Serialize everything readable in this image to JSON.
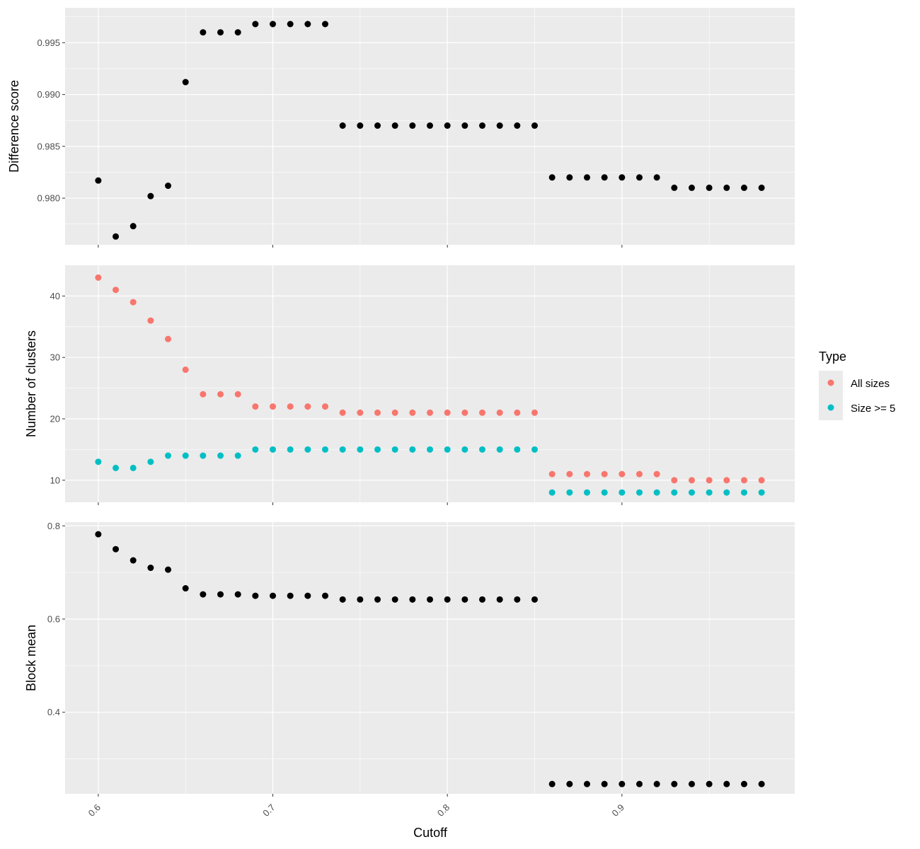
{
  "chart_data": {
    "type": "scatter",
    "xlabel": "Cutoff",
    "xlim": [
      0.581,
      0.999
    ],
    "x_ticks": [
      "0.6",
      "0.7",
      "0.8",
      "0.9"
    ],
    "x_tick_values": [
      0.6,
      0.7,
      0.8,
      0.9
    ],
    "x": [
      0.6,
      0.61,
      0.62,
      0.63,
      0.64,
      0.65,
      0.66,
      0.67,
      0.68,
      0.69,
      0.7,
      0.71,
      0.72,
      0.73,
      0.74,
      0.75,
      0.76,
      0.77,
      0.78,
      0.79,
      0.8,
      0.81,
      0.82,
      0.83,
      0.84,
      0.85,
      0.86,
      0.87,
      0.88,
      0.89,
      0.9,
      0.91,
      0.92,
      0.93,
      0.94,
      0.95,
      0.96,
      0.97,
      0.98
    ],
    "panels": [
      {
        "ylabel": "Difference score",
        "ylim": [
          0.9755,
          0.99837
        ],
        "y_ticks": [
          "0.980",
          "0.985",
          "0.990",
          "0.995"
        ],
        "y_tick_values": [
          0.98,
          0.985,
          0.99,
          0.995
        ],
        "series": [
          {
            "color": "#000000",
            "values": [
              0.9817,
              0.9763,
              0.9773,
              0.9802,
              0.9812,
              0.9912,
              0.996,
              0.996,
              0.996,
              0.9968,
              0.9968,
              0.9968,
              0.9968,
              0.9968,
              0.987,
              0.987,
              0.987,
              0.987,
              0.987,
              0.987,
              0.987,
              0.987,
              0.987,
              0.987,
              0.987,
              0.987,
              0.982,
              0.982,
              0.982,
              0.982,
              0.982,
              0.982,
              0.982,
              0.981,
              0.981,
              0.981,
              0.981,
              0.981,
              0.981
            ]
          }
        ]
      },
      {
        "ylabel": "Number of clusters",
        "ylim": [
          6.4,
          45.0
        ],
        "y_ticks": [
          "10",
          "20",
          "30",
          "40"
        ],
        "y_tick_values": [
          10,
          20,
          30,
          40
        ],
        "series": [
          {
            "name": "All sizes",
            "color": "#F8766D",
            "values": [
              43,
              41,
              39,
              36,
              33,
              28,
              24,
              24,
              24,
              22,
              22,
              22,
              22,
              22,
              21,
              21,
              21,
              21,
              21,
              21,
              21,
              21,
              21,
              21,
              21,
              21,
              11,
              11,
              11,
              11,
              11,
              11,
              11,
              10,
              10,
              10,
              10,
              10,
              10
            ]
          },
          {
            "name": "Size >= 5",
            "color": "#00BFC4",
            "values": [
              13,
              12,
              12,
              13,
              14,
              14,
              14,
              14,
              14,
              15,
              15,
              15,
              15,
              15,
              15,
              15,
              15,
              15,
              15,
              15,
              15,
              15,
              15,
              15,
              15,
              15,
              8,
              8,
              8,
              8,
              8,
              8,
              8,
              8,
              8,
              8,
              8,
              8,
              8
            ]
          }
        ]
      },
      {
        "ylabel": "Block mean",
        "ylim": [
          0.225,
          0.808
        ],
        "y_ticks": [
          "0.4",
          "0.6",
          "0.8"
        ],
        "y_tick_values": [
          0.4,
          0.6,
          0.8
        ],
        "series": [
          {
            "color": "#000000",
            "values": [
              0.782,
              0.75,
              0.726,
              0.71,
              0.706,
              0.666,
              0.653,
              0.653,
              0.653,
              0.65,
              0.65,
              0.65,
              0.65,
              0.65,
              0.642,
              0.642,
              0.642,
              0.642,
              0.642,
              0.642,
              0.642,
              0.642,
              0.642,
              0.642,
              0.642,
              0.642,
              0.246,
              0.246,
              0.246,
              0.246,
              0.246,
              0.246,
              0.246,
              0.246,
              0.246,
              0.246,
              0.246,
              0.246,
              0.246
            ]
          }
        ]
      }
    ],
    "legend": {
      "title": "Type",
      "placement": "right",
      "items": [
        {
          "label": "All sizes",
          "color": "#F8766D"
        },
        {
          "label": "Size >= 5",
          "color": "#00BFC4"
        }
      ]
    },
    "grid": true,
    "panel_background": "#EBEBEB",
    "grid_color": "#FFFFFF"
  }
}
